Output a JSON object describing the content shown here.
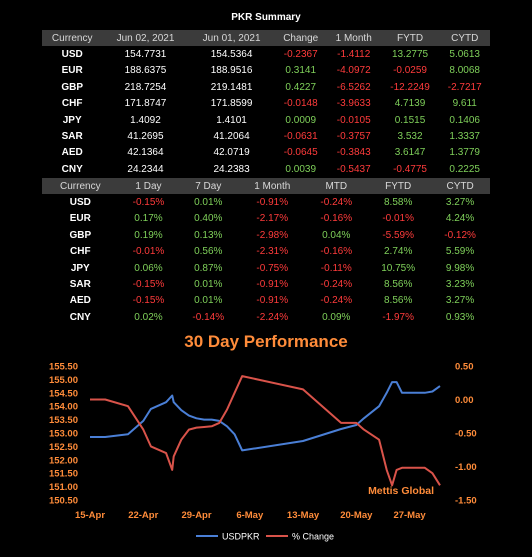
{
  "title": "PKR Summary",
  "table1": {
    "headers": [
      "Currency",
      "Jun 02, 2021",
      "Jun 01, 2021",
      "Change",
      "1 Month",
      "FYTD",
      "CYTD"
    ],
    "rows": [
      [
        "USD",
        "154.7731",
        "154.5364",
        "-0.2367",
        "-1.4112",
        "13.2775",
        "5.0613"
      ],
      [
        "EUR",
        "188.6375",
        "188.9516",
        "0.3141",
        "-4.0972",
        "-0.0259",
        "8.0068"
      ],
      [
        "GBP",
        "218.7254",
        "219.1481",
        "0.4227",
        "-6.5262",
        "-12.2249",
        "-2.7217"
      ],
      [
        "CHF",
        "171.8747",
        "171.8599",
        "-0.0148",
        "-3.9633",
        "4.7139",
        "9.611"
      ],
      [
        "JPY",
        "1.4092",
        "1.4101",
        "0.0009",
        "-0.0105",
        "0.1515",
        "0.1406"
      ],
      [
        "SAR",
        "41.2695",
        "41.2064",
        "-0.0631",
        "-0.3757",
        "3.532",
        "1.3337"
      ],
      [
        "AED",
        "42.1364",
        "42.0719",
        "-0.0645",
        "-0.3843",
        "3.6147",
        "1.3779"
      ],
      [
        "CNY",
        "24.2344",
        "24.2383",
        "0.0039",
        "-0.5437",
        "-0.4775",
        "0.2225"
      ]
    ]
  },
  "table2": {
    "headers": [
      "Currency",
      "1 Day",
      "7 Day",
      "1 Month",
      "MTD",
      "FYTD",
      "CYTD"
    ],
    "rows": [
      [
        "USD",
        "-0.15%",
        "0.01%",
        "-0.91%",
        "-0.24%",
        "8.58%",
        "3.27%"
      ],
      [
        "EUR",
        "0.17%",
        "0.40%",
        "-2.17%",
        "-0.16%",
        "-0.01%",
        "4.24%"
      ],
      [
        "GBP",
        "0.19%",
        "0.13%",
        "-2.98%",
        "0.04%",
        "-5.59%",
        "-0.12%"
      ],
      [
        "CHF",
        "-0.01%",
        "0.56%",
        "-2.31%",
        "-0.16%",
        "2.74%",
        "5.59%"
      ],
      [
        "JPY",
        "0.06%",
        "0.87%",
        "-0.75%",
        "-0.11%",
        "10.75%",
        "9.98%"
      ],
      [
        "SAR",
        "-0.15%",
        "0.01%",
        "-0.91%",
        "-0.24%",
        "8.56%",
        "3.23%"
      ],
      [
        "AED",
        "-0.15%",
        "0.01%",
        "-0.91%",
        "-0.24%",
        "8.56%",
        "3.27%"
      ],
      [
        "CNY",
        "0.02%",
        "-0.14%",
        "-2.24%",
        "0.09%",
        "-1.97%",
        "0.93%"
      ]
    ]
  },
  "colors": {
    "positive": "#7fd05a",
    "negative": "#ff3b3b",
    "neutral": "#ffffff",
    "usd_line": "#4a7fd6",
    "pct_line": "#d9534a",
    "accent": "#ff8c3a"
  },
  "chart_data": {
    "type": "line",
    "title": "30 Day Performance",
    "watermark": "Mettis Global",
    "x_ticks": [
      "15-Apr",
      "22-Apr",
      "29-Apr",
      "6-May",
      "13-May",
      "20-May",
      "27-May"
    ],
    "x_tick_days": [
      0,
      7,
      14,
      21,
      28,
      35,
      42
    ],
    "y_left_ticks": [
      "155.50",
      "155.00",
      "154.50",
      "154.00",
      "153.50",
      "153.00",
      "152.50",
      "152.00",
      "151.50",
      "151.00",
      "150.50"
    ],
    "y_left_range": [
      150.5,
      155.5
    ],
    "y_right_ticks": [
      "0.50",
      "0.00",
      "-0.50",
      "-1.00",
      "-1.50"
    ],
    "y_right_range": [
      -1.5,
      0.5
    ],
    "series": [
      {
        "name": "USDPKR",
        "axis": "left",
        "x": [
          0,
          2,
          5,
          7,
          8,
          10,
          10.8,
          11,
          12,
          13,
          14,
          15,
          16,
          17,
          18,
          19,
          20,
          28,
          33,
          35,
          36,
          38,
          39,
          39.7,
          40.3,
          41,
          44,
          45,
          46
        ],
        "y": [
          152.85,
          152.85,
          152.95,
          153.45,
          153.9,
          154.15,
          154.4,
          154.15,
          153.85,
          153.65,
          153.55,
          153.5,
          153.5,
          153.45,
          153.25,
          152.95,
          152.35,
          152.7,
          153.15,
          153.3,
          153.55,
          154.0,
          154.5,
          154.9,
          154.9,
          154.5,
          154.5,
          154.55,
          154.75
        ]
      },
      {
        "name": "% Change",
        "axis": "right",
        "x": [
          0,
          2,
          5,
          7,
          8,
          10,
          10.8,
          11,
          12,
          13,
          14,
          15,
          16,
          17,
          18,
          19,
          20,
          28,
          33,
          35,
          36,
          38,
          39,
          39.7,
          40.3,
          41,
          44,
          45,
          46
        ],
        "y": [
          0.0,
          0.0,
          -0.1,
          -0.45,
          -0.7,
          -0.8,
          -1.05,
          -0.85,
          -0.6,
          -0.45,
          -0.42,
          -0.41,
          -0.4,
          -0.35,
          -0.15,
          0.1,
          0.35,
          0.15,
          -0.35,
          -0.35,
          -0.45,
          -0.6,
          -1.05,
          -1.28,
          -1.05,
          -1.02,
          -1.02,
          -1.1,
          -1.28
        ]
      }
    ],
    "legend": [
      "USDPKR",
      "% Change"
    ],
    "legend_position": "bottom"
  }
}
